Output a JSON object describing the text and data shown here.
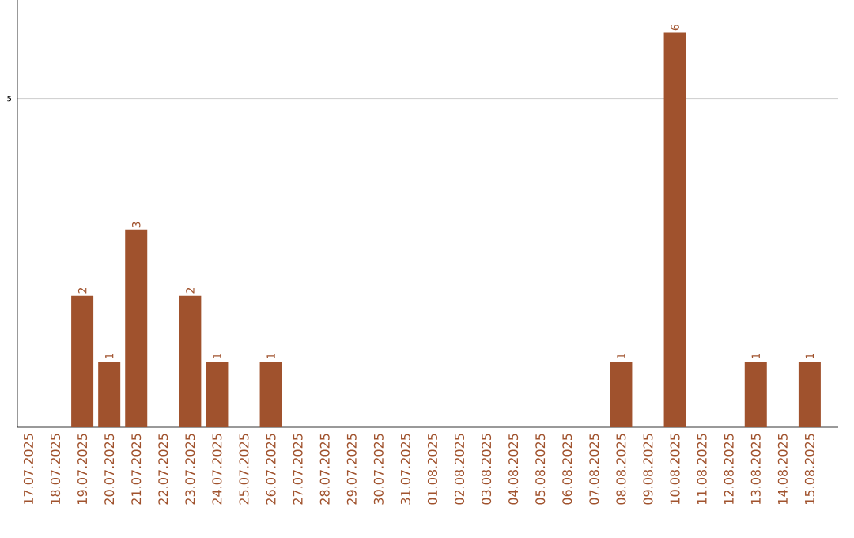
{
  "chart_data": {
    "type": "bar",
    "categories": [
      "17.07.2025",
      "18.07.2025",
      "19.07.2025",
      "20.07.2025",
      "21.07.2025",
      "22.07.2025",
      "23.07.2025",
      "24.07.2025",
      "25.07.2025",
      "26.07.2025",
      "27.07.2025",
      "28.07.2025",
      "29.07.2025",
      "30.07.2025",
      "31.07.2025",
      "01.08.2025",
      "02.08.2025",
      "03.08.2025",
      "04.08.2025",
      "05.08.2025",
      "06.08.2025",
      "07.08.2025",
      "08.08.2025",
      "09.08.2025",
      "10.08.2025",
      "11.08.2025",
      "12.08.2025",
      "13.08.2025",
      "14.08.2025",
      "15.08.2025"
    ],
    "values": [
      0,
      0,
      2,
      1,
      3,
      0,
      2,
      1,
      0,
      1,
      0,
      0,
      0,
      0,
      0,
      0,
      0,
      0,
      0,
      0,
      0,
      0,
      1,
      0,
      6,
      0,
      0,
      1,
      0,
      1
    ],
    "value_labels": [
      null,
      null,
      "2",
      "1",
      "3",
      null,
      "2",
      "1",
      null,
      "1",
      null,
      null,
      null,
      null,
      null,
      null,
      null,
      null,
      null,
      null,
      null,
      null,
      "1",
      null,
      "6",
      null,
      null,
      "1",
      null,
      "1"
    ],
    "color": "#a0522d",
    "ylim": [
      0,
      6.5
    ],
    "yticks": [
      5
    ],
    "grid": "y"
  }
}
